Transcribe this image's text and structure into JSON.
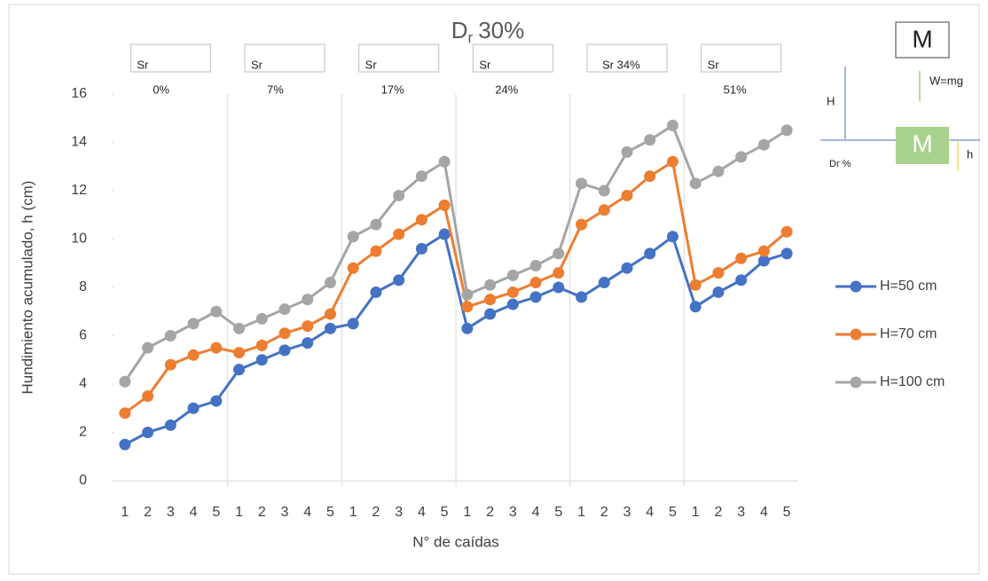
{
  "chart_data": {
    "type": "line",
    "title_base": "D",
    "title_subscript": "r",
    "title_rest": "30%",
    "y_label": "Hundimiento acumulado, h (cm)",
    "x_label": "N° de caídas",
    "categories": [
      "1",
      "2",
      "3",
      "4",
      "5",
      "1",
      "2",
      "3",
      "4",
      "5",
      "1",
      "2",
      "3",
      "4",
      "5",
      "1",
      "2",
      "3",
      "4",
      "5",
      "1",
      "2",
      "3",
      "4",
      "5",
      "1",
      "2",
      "3",
      "4",
      "5"
    ],
    "group_labels": [
      [
        "Sr",
        "0%"
      ],
      [
        "Sr",
        "7%"
      ],
      [
        "Sr",
        "17%"
      ],
      [
        "Sr",
        "24%"
      ],
      [
        "Sr 34%"
      ],
      [
        "Sr",
        "51%"
      ]
    ],
    "ylim": [
      0,
      16
    ],
    "yticks": [
      0,
      2,
      4,
      6,
      8,
      10,
      12,
      14,
      16
    ],
    "series": [
      {
        "name": "H=50 cm",
        "color": "#4472c4",
        "values": [
          1.5,
          2.0,
          2.3,
          3.0,
          3.3,
          4.6,
          5.0,
          5.4,
          5.7,
          6.3,
          6.5,
          7.8,
          8.3,
          9.6,
          10.2,
          6.3,
          6.9,
          7.3,
          7.6,
          8.0,
          7.6,
          8.2,
          8.8,
          9.4,
          10.1,
          7.2,
          7.8,
          8.3,
          9.1,
          9.4
        ]
      },
      {
        "name": "H=70 cm",
        "color": "#ed7d31",
        "values": [
          2.8,
          3.5,
          4.8,
          5.2,
          5.5,
          5.3,
          5.6,
          6.1,
          6.4,
          6.9,
          8.8,
          9.5,
          10.2,
          10.8,
          11.4,
          7.2,
          7.5,
          7.8,
          8.2,
          8.6,
          10.6,
          11.2,
          11.8,
          12.6,
          13.2,
          8.1,
          8.6,
          9.2,
          9.5,
          10.3
        ]
      },
      {
        "name": "H=100 cm",
        "color": "#a5a5a5",
        "values": [
          4.1,
          5.5,
          6.0,
          6.5,
          7.0,
          6.3,
          6.7,
          7.1,
          7.5,
          8.2,
          10.1,
          10.6,
          11.8,
          12.6,
          13.2,
          7.7,
          8.1,
          8.5,
          8.9,
          9.4,
          12.3,
          12.0,
          13.6,
          14.1,
          14.7,
          12.3,
          12.8,
          13.4,
          13.9,
          14.5
        ]
      }
    ],
    "diagram": {
      "mass_top": "M",
      "weight": "W=mg",
      "height": "H",
      "density": "Dr %",
      "mass_bottom": "M",
      "settlement": "h"
    }
  }
}
